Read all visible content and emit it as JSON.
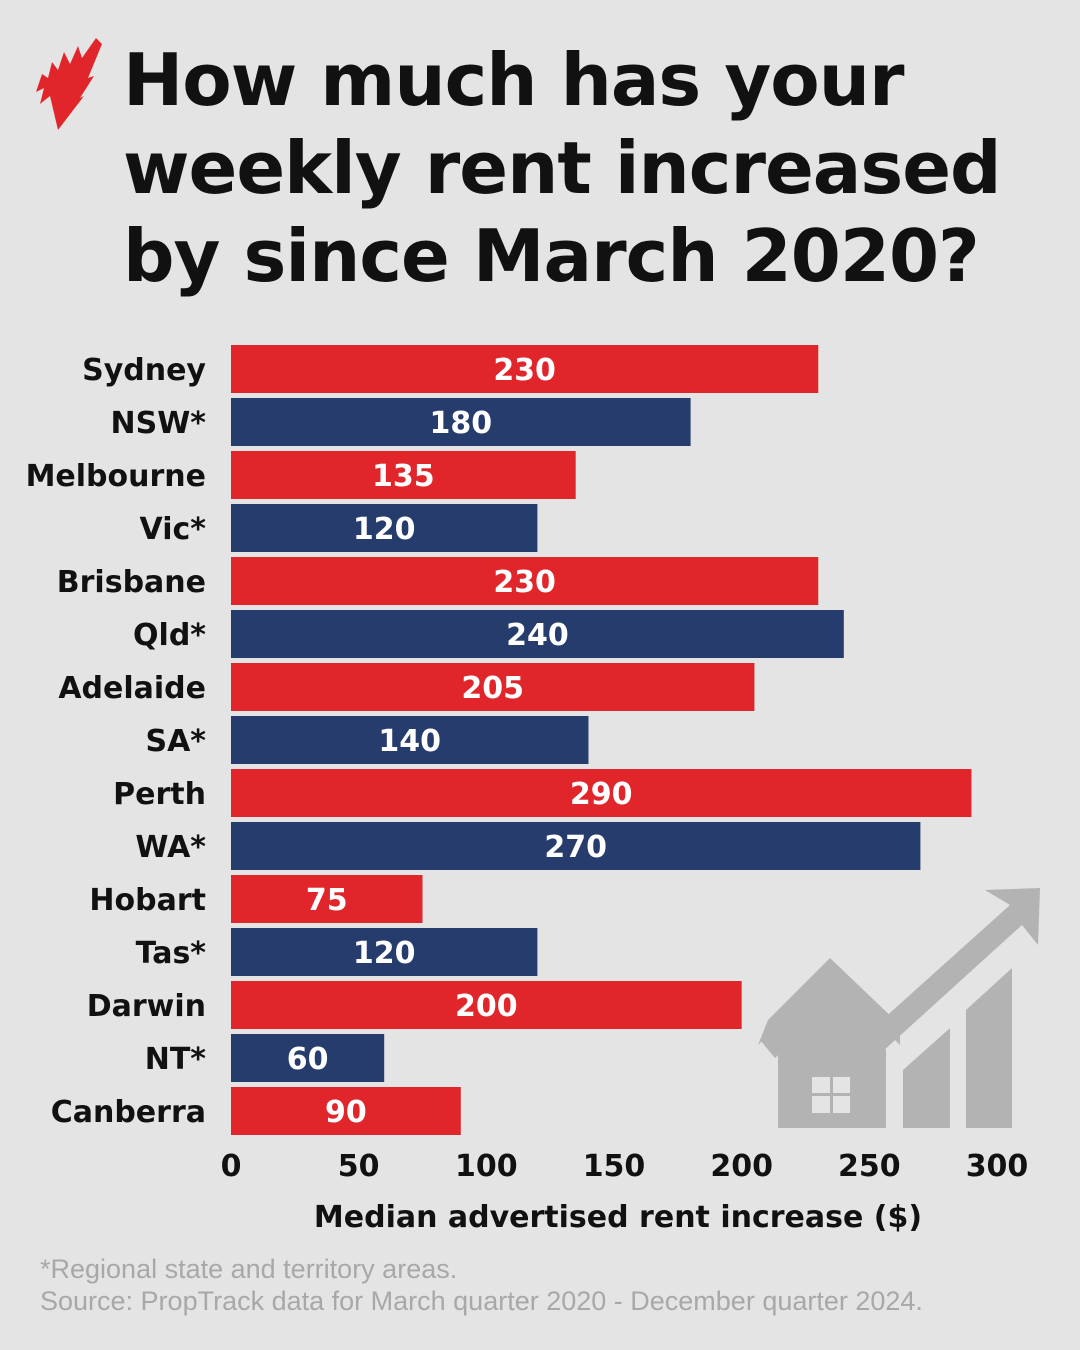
{
  "title": "How much has your weekly rent increased by since March 2020?",
  "footer": {
    "note": "*Regional state and territory areas.",
    "source": "Source: PropTrack data for March quarter 2020 - December quarter 2024."
  },
  "colors": {
    "city": "#e1262b",
    "regional": "#263c6d",
    "background": "#e4e4e4",
    "icon": "#b3b3b3"
  },
  "icons": {
    "logo": "sbs-logo",
    "decoration": "house-growth-arrow-icon"
  },
  "chart_data": {
    "type": "bar",
    "orientation": "horizontal",
    "categories": [
      "Sydney",
      "NSW*",
      "Melbourne",
      "Vic*",
      "Brisbane",
      "Qld*",
      "Adelaide",
      "SA*",
      "Perth",
      "WA*",
      "Hobart",
      "Tas*",
      "Darwin",
      "NT*",
      "Canberra"
    ],
    "values": [
      230,
      180,
      135,
      120,
      230,
      240,
      205,
      140,
      290,
      270,
      75,
      120,
      200,
      60,
      90
    ],
    "bar_colors": [
      "city",
      "regional",
      "city",
      "regional",
      "city",
      "regional",
      "city",
      "regional",
      "city",
      "regional",
      "city",
      "regional",
      "city",
      "regional",
      "city"
    ],
    "xlabel": "Median advertised rent increase ($)",
    "ylabel": "",
    "xlim": [
      0,
      300
    ],
    "xticks": [
      0,
      50,
      100,
      150,
      200,
      250,
      300
    ],
    "grid": false,
    "data_labels": true
  }
}
